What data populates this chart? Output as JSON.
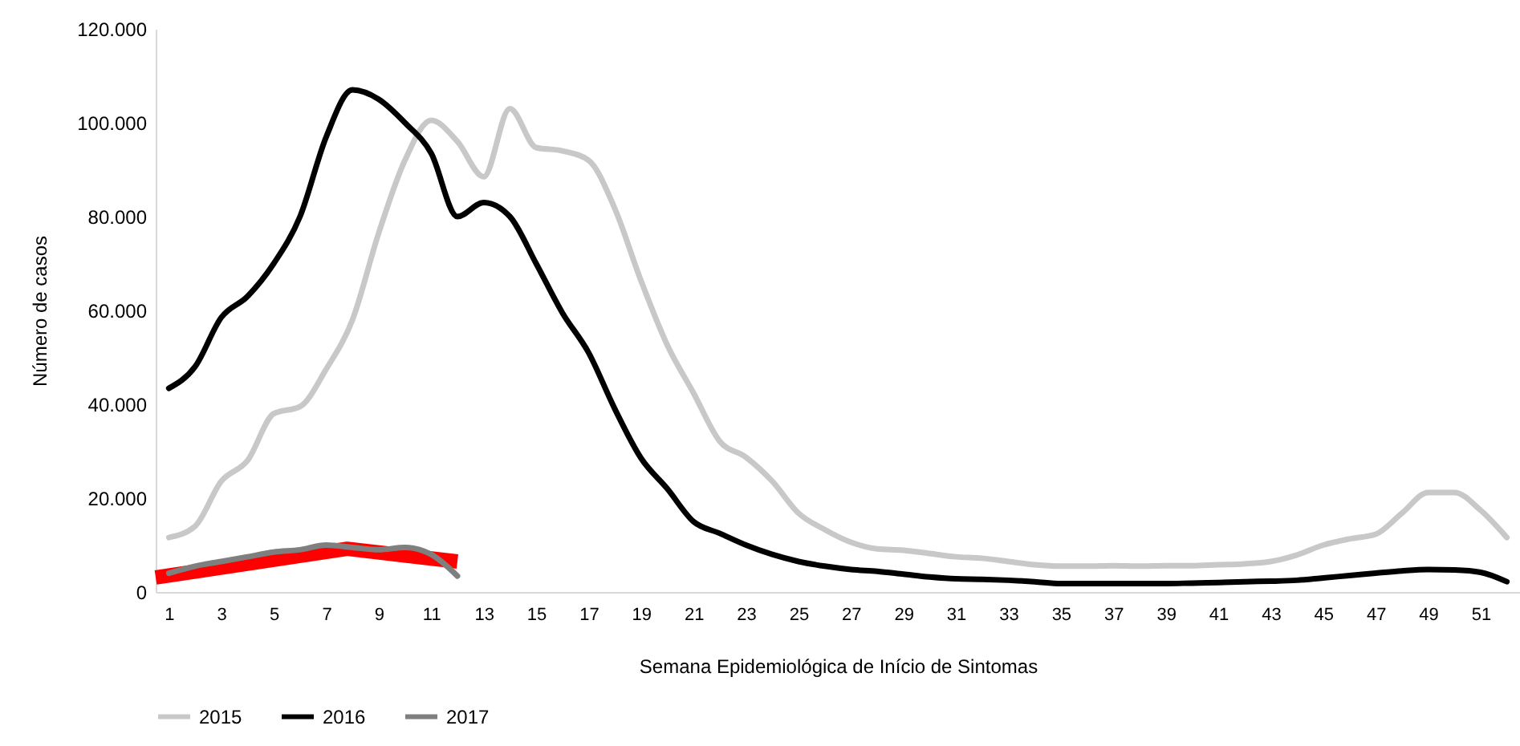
{
  "chart_data": {
    "type": "line",
    "xlabel": "Semana Epidemiológica de Início de Sintomas",
    "ylabel": "Número de casos",
    "x": [
      1,
      2,
      3,
      4,
      5,
      6,
      7,
      8,
      9,
      10,
      11,
      12,
      13,
      14,
      15,
      16,
      17,
      18,
      19,
      20,
      21,
      22,
      23,
      24,
      25,
      26,
      27,
      28,
      29,
      30,
      31,
      32,
      33,
      34,
      35,
      36,
      37,
      38,
      39,
      40,
      41,
      42,
      43,
      44,
      45,
      46,
      47,
      48,
      49,
      50,
      51,
      52
    ],
    "xlim": [
      0.5,
      52.5
    ],
    "xticks": [
      1,
      3,
      5,
      7,
      9,
      11,
      13,
      15,
      17,
      19,
      21,
      23,
      25,
      27,
      29,
      31,
      33,
      35,
      37,
      39,
      41,
      43,
      45,
      47,
      49,
      51
    ],
    "ylim": [
      0,
      120000
    ],
    "yticks": [
      {
        "value": 0,
        "label": "0"
      },
      {
        "value": 20000,
        "label": "20.000"
      },
      {
        "value": 40000,
        "label": "40.000"
      },
      {
        "value": 60000,
        "label": "60.000"
      },
      {
        "value": 80000,
        "label": "80.000"
      },
      {
        "value": 100000,
        "label": "100.000"
      },
      {
        "value": 120000,
        "label": "120.000"
      }
    ],
    "grid": false,
    "legend": "bottom",
    "series": [
      {
        "name": "2015",
        "color": "#c8c8c8",
        "values": [
          11600,
          14000,
          23600,
          28000,
          38000,
          39500,
          47500,
          58000,
          76500,
          92000,
          100500,
          96000,
          88500,
          103000,
          94700,
          94000,
          92000,
          81700,
          66300,
          52600,
          42400,
          32100,
          28700,
          23600,
          16800,
          13300,
          10600,
          9200,
          8900,
          8200,
          7500,
          7200,
          6500,
          5800,
          5500,
          5500,
          5600,
          5500,
          5600,
          5600,
          5800,
          6000,
          6500,
          7900,
          10000,
          11300,
          12300,
          16800,
          21200,
          21200,
          17400,
          11600
        ]
      },
      {
        "name": "2016",
        "color": "#000000",
        "values": [
          43400,
          48000,
          58500,
          63000,
          70000,
          80000,
          97000,
          107000,
          105000,
          100000,
          93500,
          80000,
          83000,
          80000,
          70000,
          59500,
          51000,
          39000,
          28500,
          22000,
          15000,
          12500,
          10000,
          8000,
          6500,
          5500,
          4800,
          4400,
          3800,
          3200,
          2800,
          2700,
          2500,
          2200,
          1800,
          1800,
          1800,
          1800,
          1800,
          1900,
          2000,
          2200,
          2300,
          2500,
          3000,
          3500,
          4000,
          4500,
          4800,
          4700,
          4200,
          2200
        ]
      },
      {
        "name": "2017",
        "color": "#7f7f7f",
        "values": [
          4000,
          5500,
          6500,
          7500,
          8500,
          9000,
          10000,
          9500,
          9000,
          9500,
          8000,
          3400,
          null,
          null,
          null,
          null,
          null,
          null,
          null,
          null,
          null,
          null,
          null,
          null,
          null,
          null,
          null,
          null,
          null,
          null,
          null,
          null,
          null,
          null,
          null,
          null,
          null,
          null,
          null,
          null,
          null,
          null,
          null,
          null,
          null,
          null,
          null,
          null,
          null,
          null,
          null,
          null
        ]
      },
      {
        "type": "line",
        "color": "#ff0000",
        "x": [
          0.5,
          7.8,
          12
        ],
        "values": [
          3100,
          9200,
          6500
        ]
      }
    ]
  }
}
